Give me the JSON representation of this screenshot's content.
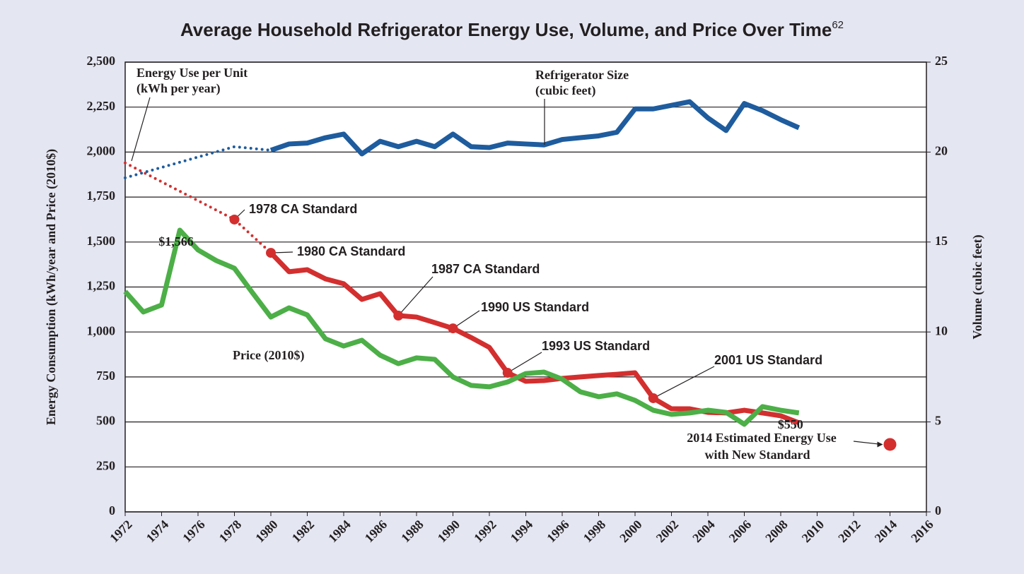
{
  "chart_data": {
    "type": "line",
    "title": "Average Household Refrigerator Energy Use, Volume, and Price Over Time",
    "title_footnote": "62",
    "y_label": "Energy Consumption (kWh/year and Price (2010$)",
    "y2_label": "Volume (cubic feet)",
    "xlim": [
      1972,
      2016
    ],
    "xticks": [
      1972,
      1974,
      1976,
      1978,
      1980,
      1982,
      1984,
      1986,
      1988,
      1990,
      1992,
      1994,
      1996,
      1998,
      2000,
      2002,
      2004,
      2006,
      2008,
      2010,
      2012,
      2014,
      2016
    ],
    "ylim": [
      0,
      2500
    ],
    "yticks": [
      0,
      250,
      500,
      750,
      {
        "value": 1000,
        "label": "1,000"
      },
      {
        "value": 1250,
        "label": "1,250"
      },
      {
        "value": 1500,
        "label": "1,500"
      },
      {
        "value": 1750,
        "label": "1,750"
      },
      {
        "value": 2000,
        "label": "2,000"
      },
      {
        "value": 2250,
        "label": "2,250"
      },
      {
        "value": 2500,
        "label": "2,500"
      }
    ],
    "y2lim": [
      0,
      25
    ],
    "y2ticks": [
      0,
      5,
      10,
      15,
      20,
      25
    ],
    "grid": true,
    "series": [
      {
        "label_lines": [
          "Energy Use per Unit",
          "(kWh per year)"
        ],
        "color": "#d32f2f",
        "solid_from": 1980,
        "x": [
          1972,
          1978,
          1980,
          1981,
          1982,
          1983,
          1984,
          1985,
          1986,
          1987,
          1988,
          1989,
          1990,
          1991,
          1992,
          1993,
          1994,
          1995,
          1996,
          1997,
          1998,
          1999,
          2000,
          2001,
          2002,
          2003,
          2004,
          2005,
          2006,
          2007,
          2008,
          2009
        ],
        "values": [
          1940,
          1625,
          1440,
          1335,
          1346,
          1295,
          1268,
          1181,
          1213,
          1091,
          1083,
          1052,
          1020,
          969,
          914,
          773,
          726,
          730,
          742,
          750,
          758,
          765,
          773,
          632,
          573,
          573,
          553,
          550,
          565,
          550,
          534,
          495
        ]
      },
      {
        "label_lines": [
          "Refrigerator Size",
          "(cubic feet)"
        ],
        "color": "#1e5c9e",
        "solid_from": 1980,
        "axis": "y2",
        "x": [
          1972,
          1978,
          1980,
          1981,
          1982,
          1983,
          1984,
          1985,
          1986,
          1987,
          1988,
          1989,
          1990,
          1991,
          1992,
          1993,
          1994,
          1995,
          1996,
          1997,
          1998,
          1999,
          2000,
          2001,
          2002,
          2003,
          2004,
          2005,
          2006,
          2007,
          2008,
          2009
        ],
        "values": [
          18.57,
          20.3,
          20.1,
          20.45,
          20.5,
          20.8,
          21.0,
          19.9,
          20.6,
          20.3,
          20.6,
          20.3,
          21.0,
          20.3,
          20.25,
          20.5,
          20.45,
          20.4,
          20.7,
          20.8,
          20.9,
          21.1,
          22.4,
          22.4,
          22.6,
          22.8,
          21.9,
          21.2,
          22.7,
          22.3,
          21.8,
          21.35
        ]
      },
      {
        "label_lines": [
          "Price (2010$)"
        ],
        "color": "#4caf47",
        "x": [
          1972,
          1973,
          1974,
          1975,
          1976,
          1977,
          1978,
          1979,
          1980,
          1981,
          1982,
          1983,
          1984,
          1985,
          1986,
          1987,
          1988,
          1989,
          1990,
          1991,
          1992,
          1993,
          1994,
          1995,
          1996,
          1997,
          1998,
          1999,
          2000,
          2001,
          2002,
          2003,
          2004,
          2005,
          2006,
          2007,
          2008,
          2009
        ],
        "values": [
          1225,
          1111,
          1150,
          1566,
          1456,
          1397,
          1354,
          1217,
          1083,
          1134,
          1095,
          962,
          922,
          954,
          871,
          824,
          856,
          848,
          750,
          703,
          695,
          722,
          769,
          777,
          738,
          667,
          640,
          656,
          620,
          565,
          542,
          550,
          565,
          553,
          487,
          585,
          565,
          550
        ],
        "value_labels": [
          null,
          null,
          null,
          "$1,566",
          null,
          null,
          null,
          null,
          null,
          null,
          null,
          null,
          null,
          null,
          null,
          null,
          null,
          null,
          null,
          null,
          null,
          null,
          null,
          null,
          null,
          null,
          null,
          null,
          null,
          null,
          null,
          null,
          null,
          null,
          null,
          null,
          null,
          "$550"
        ]
      }
    ],
    "standards": [
      {
        "label": "1978 CA Standard",
        "x": 1978
      },
      {
        "label": "1980 CA Standard",
        "x": 1980
      },
      {
        "label": "1987 CA Standard",
        "x": 1987
      },
      {
        "label": "1990 US Standard",
        "x": 1990
      },
      {
        "label": "1993 US Standard",
        "x": 1993
      },
      {
        "label": "2001 US Standard",
        "x": 2001
      }
    ],
    "estimate": {
      "label_lines": [
        "2014 Estimated Energy Use",
        "with New Standard"
      ],
      "x": 2014,
      "value": 375,
      "color": "#d32f2f"
    }
  }
}
